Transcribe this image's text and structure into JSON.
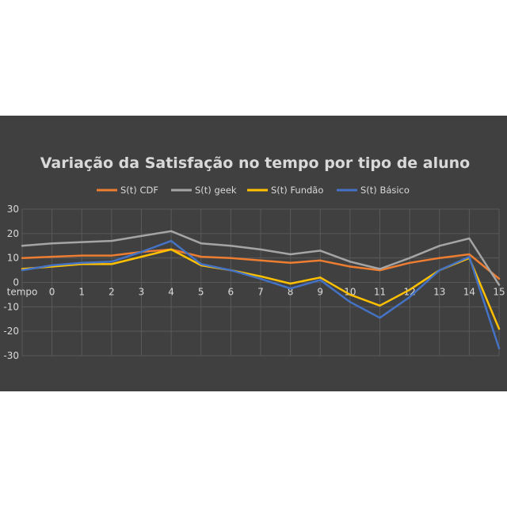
{
  "chart_data": {
    "type": "line",
    "title": "Variação da Satisfação no tempo por tipo de aluno",
    "categories": [
      "tempo",
      "0",
      "1",
      "2",
      "3",
      "4",
      "5",
      "6",
      "7",
      "8",
      "9",
      "10",
      "11",
      "12",
      "13",
      "14",
      "15"
    ],
    "yticks": [
      "30",
      "20",
      "10",
      "0",
      "-10",
      "-20",
      "-30"
    ],
    "ylim": [
      -30,
      30
    ],
    "grid": true,
    "legend_position": "top",
    "series": [
      {
        "name": "S(t) CDF",
        "color": "#ed7d31",
        "values": [
          10,
          10.5,
          11,
          11,
          12.5,
          13.5,
          10.5,
          10,
          9,
          8,
          9,
          6.5,
          5,
          8,
          10,
          11.5,
          1.5
        ]
      },
      {
        "name": "S(t) geek",
        "color": "#a5a5a5",
        "values": [
          15,
          16,
          16.5,
          17,
          19,
          21,
          16,
          15,
          13.5,
          11.5,
          13,
          8.5,
          5.5,
          10,
          15,
          18,
          -1
        ]
      },
      {
        "name": "S(t) Fundão",
        "color": "#ffc000",
        "values": [
          5.5,
          6.5,
          7.5,
          7.5,
          10.5,
          13.5,
          7,
          5,
          2.5,
          -0.5,
          2,
          -5,
          -9.5,
          -3,
          5,
          10,
          -19
        ]
      },
      {
        "name": "S(t) Básico",
        "color": "#4472c4",
        "values": [
          5,
          7,
          8,
          8.5,
          12.5,
          17,
          7.5,
          5,
          1.5,
          -2.5,
          1,
          -8,
          -14.5,
          -6,
          5,
          10.5,
          -27
        ]
      }
    ]
  }
}
